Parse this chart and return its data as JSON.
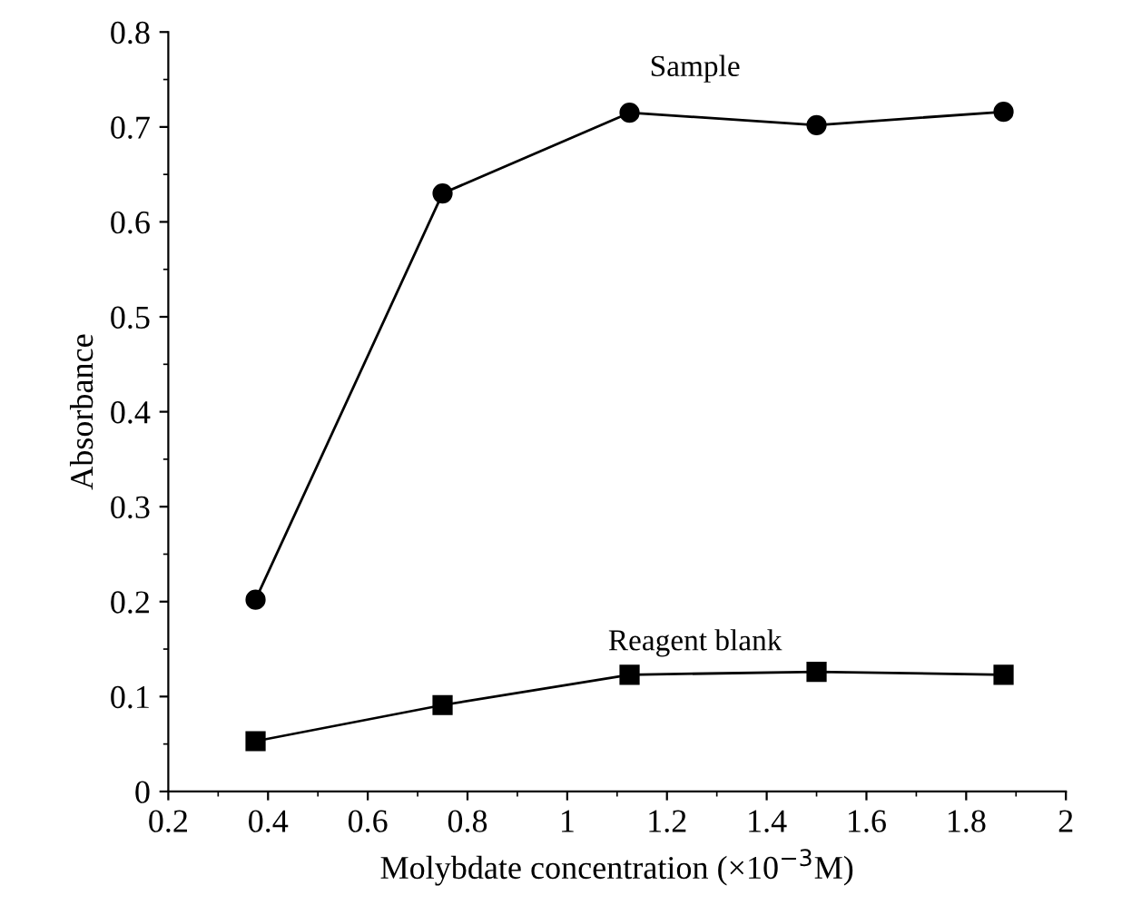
{
  "chart_data": {
    "type": "line",
    "xlabel": "Molybdate concentration (×10$^{−3}$M)",
    "ylabel": "Absorbance",
    "x": [
      0.375,
      0.75,
      1.125,
      1.5,
      1.875
    ],
    "series": [
      {
        "name": "Sample",
        "color": "#000000",
        "marker": "circle",
        "values": [
          0.202,
          0.63,
          0.715,
          0.702,
          0.716
        ]
      },
      {
        "name": "Reagent blank",
        "color": "#000000",
        "marker": "square",
        "values": [
          0.053,
          0.091,
          0.123,
          0.126,
          0.123
        ]
      }
    ],
    "xlim": [
      0.2,
      2
    ],
    "xticks": [
      0.2,
      0.4,
      0.6,
      0.8,
      1,
      1.2,
      1.4,
      1.6,
      1.8,
      2
    ],
    "ylim": [
      0,
      0.8
    ],
    "yticks": [
      0,
      0.1,
      0.2,
      0.3,
      0.4,
      0.5,
      0.6,
      0.7,
      0.8
    ],
    "grid": false,
    "legend": false,
    "line_style": "solid"
  }
}
